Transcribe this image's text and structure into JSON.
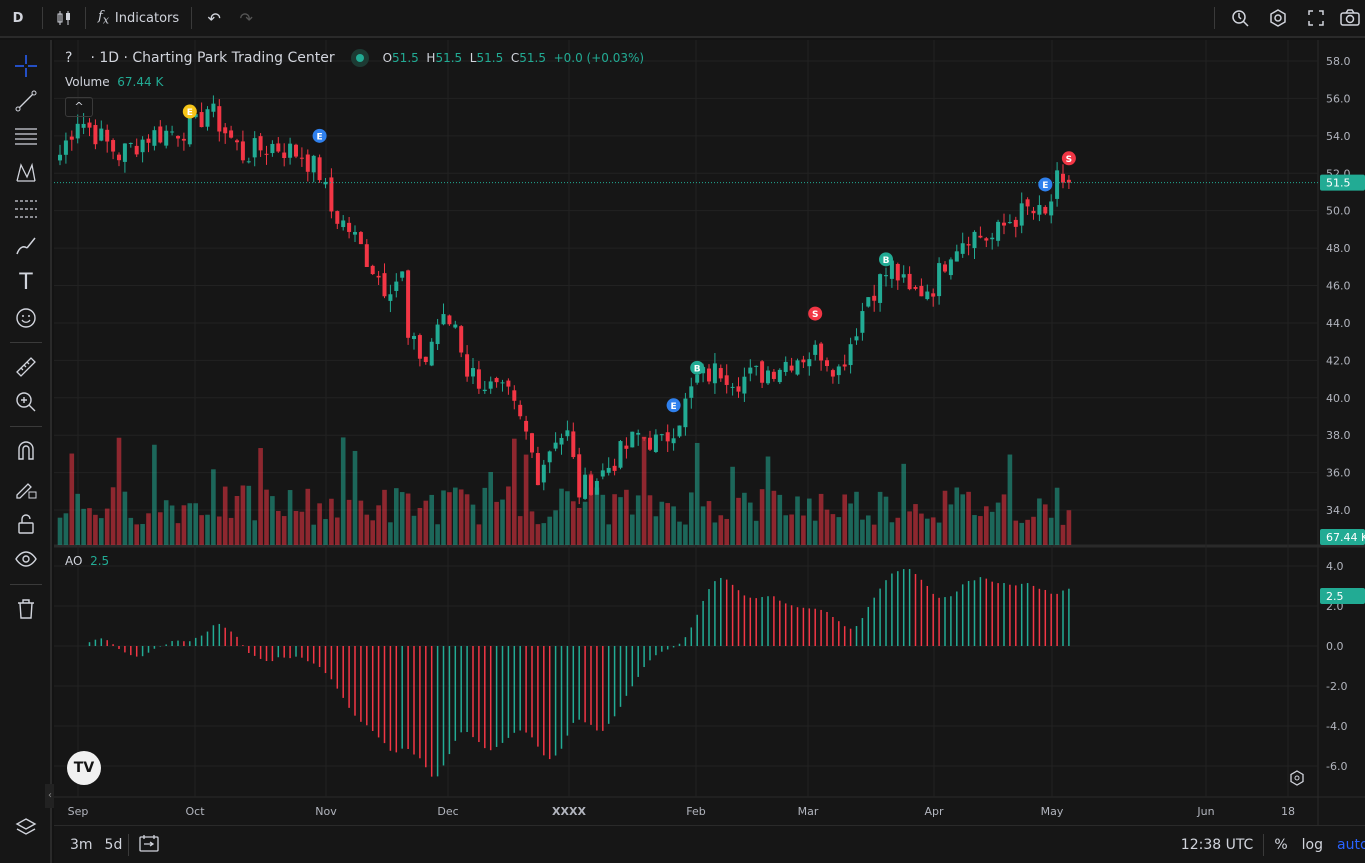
{
  "toolbar": {
    "symbol": "D",
    "indicators_label": "Indicators"
  },
  "legend": {
    "symbol": "?",
    "title": "· 1D · Charting Park Trading Center",
    "o_label": "O",
    "o": "51.5",
    "h_label": "H",
    "h": "51.5",
    "l_label": "L",
    "l": "51.5",
    "c_label": "C",
    "c": "51.5",
    "change": "+0.0 (+0.03%)",
    "volume_label": "Volume",
    "volume": "67.44 K",
    "ao_label": "AO",
    "ao": "2.5"
  },
  "price_axis": {
    "ticks": [
      "58.0",
      "56.0",
      "54.0",
      "52.0",
      "50.0",
      "48.0",
      "46.0",
      "44.0",
      "42.0",
      "40.0",
      "38.0",
      "36.0",
      "34.0"
    ],
    "last_price": "51.5",
    "last_volume": "67.44 K",
    "ao_ticks": [
      "4.0",
      "2.0",
      "0.0",
      "-2.0",
      "-4.0",
      "-6.0"
    ],
    "ao_last": "2.5"
  },
  "time_axis": [
    "Sep",
    "Oct",
    "Nov",
    "Dec",
    "XXXX",
    "Feb",
    "Mar",
    "Apr",
    "May",
    "Jun",
    "18"
  ],
  "bottombar": {
    "range_3m": "3m",
    "range_5d": "5d",
    "time": "12:38 UTC",
    "percent": "%",
    "log": "log",
    "auto": "auto"
  },
  "colors": {
    "up": "#22ab94",
    "down": "#f23645",
    "accent": "#2962ff"
  },
  "chart_data": {
    "type": "candlestick",
    "price_range": [
      33,
      58.5
    ],
    "close_anchors": [
      [
        0,
        53
      ],
      [
        3,
        55
      ],
      [
        10,
        53
      ],
      [
        15,
        54
      ],
      [
        23,
        54.5
      ],
      [
        25,
        55.5
      ],
      [
        31,
        53
      ],
      [
        36,
        53.5
      ],
      [
        41,
        53
      ],
      [
        44,
        52
      ],
      [
        46,
        50
      ],
      [
        49,
        49
      ],
      [
        53,
        47
      ],
      [
        55,
        46
      ],
      [
        58,
        46.5
      ],
      [
        59,
        43
      ],
      [
        62,
        42
      ],
      [
        64,
        44
      ],
      [
        67,
        44
      ],
      [
        69,
        41.5
      ],
      [
        73,
        40.5
      ],
      [
        76,
        40
      ],
      [
        79,
        38
      ],
      [
        81,
        36
      ],
      [
        84,
        38
      ],
      [
        86,
        38
      ],
      [
        88,
        35
      ],
      [
        92,
        36
      ],
      [
        95,
        37
      ],
      [
        98,
        38
      ],
      [
        102,
        37.5
      ],
      [
        105,
        39
      ],
      [
        108,
        41
      ],
      [
        112,
        41.5
      ],
      [
        115,
        41
      ],
      [
        119,
        41.3
      ],
      [
        122,
        41.8
      ],
      [
        125,
        42.2
      ],
      [
        129,
        42.5
      ],
      [
        132,
        41.5
      ],
      [
        134,
        43
      ],
      [
        137,
        45.5
      ],
      [
        141,
        47
      ],
      [
        144,
        45.5
      ],
      [
        148,
        46
      ],
      [
        151,
        48
      ],
      [
        154,
        48.8
      ],
      [
        158,
        48.5
      ],
      [
        161,
        49.5
      ],
      [
        164,
        50
      ],
      [
        167,
        49.6
      ],
      [
        169,
        51.5
      ],
      [
        171,
        51.5
      ]
    ],
    "events": [
      {
        "label": "E",
        "bar": 22,
        "price": 55.3,
        "color": "#f5c518"
      },
      {
        "label": "E",
        "bar": 44,
        "price": 54,
        "color": "#2f80ed"
      },
      {
        "label": "E",
        "bar": 104,
        "price": 39.6,
        "color": "#2f80ed"
      },
      {
        "label": "B",
        "bar": 108,
        "price": 41.6,
        "color": "#22ab94"
      },
      {
        "label": "S",
        "bar": 128,
        "price": 44.5,
        "color": "#f23645"
      },
      {
        "label": "B",
        "bar": 140,
        "price": 47.4,
        "color": "#22ab94"
      },
      {
        "label": "E",
        "bar": 167,
        "price": 51.4,
        "color": "#2f80ed"
      },
      {
        "label": "S",
        "bar": 171,
        "price": 52.8,
        "color": "#f23645"
      }
    ]
  }
}
